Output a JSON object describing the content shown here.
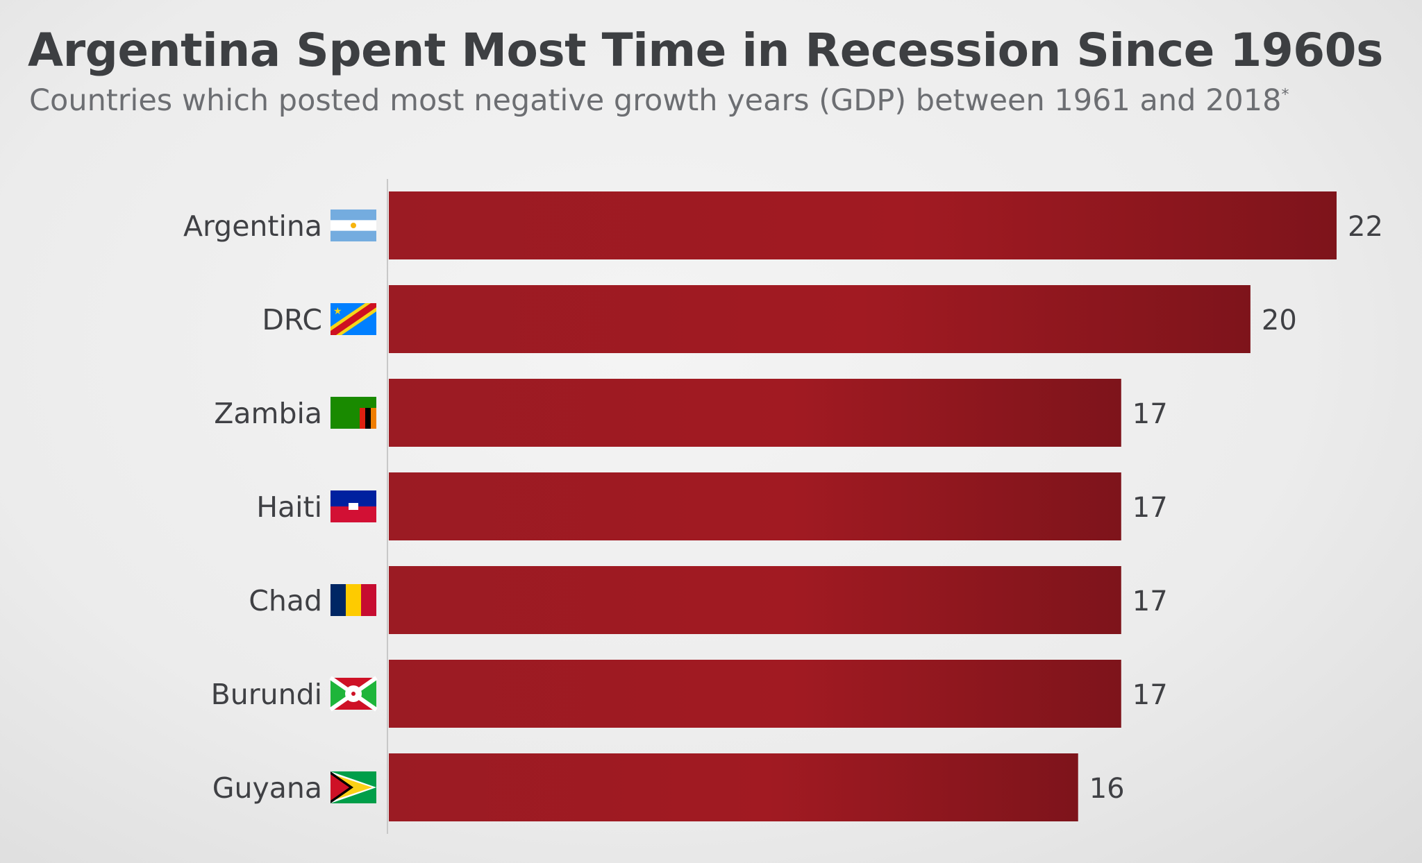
{
  "header": {
    "title": "Argentina Spent Most Time in Recession Since 1960s",
    "subtitle": "Countries which posted most negative growth years (GDP) between 1961 and 2018",
    "subtitle_mark": "*"
  },
  "colors": {
    "bar": "#9b1b23",
    "bar_dark": "#7e141b",
    "label": "#3f4044",
    "axis": "#c8c8c8"
  },
  "chart_data": {
    "type": "bar",
    "orientation": "horizontal",
    "title": "Argentina Spent Most Time in Recession Since 1960s",
    "subtitle": "Countries which posted most negative growth years (GDP) between 1961 and 2018*",
    "categories": [
      "Argentina",
      "DRC",
      "Zambia",
      "Haiti",
      "Chad",
      "Burundi",
      "Guyana"
    ],
    "values": [
      22,
      20,
      17,
      17,
      17,
      17,
      16
    ],
    "flags": [
      "argentina-flag",
      "drc-flag",
      "zambia-flag",
      "haiti-flag",
      "chad-flag",
      "burundi-flag",
      "guyana-flag"
    ],
    "xlim": [
      0,
      22
    ],
    "data_labels": true,
    "grid": false,
    "legend": "none"
  }
}
